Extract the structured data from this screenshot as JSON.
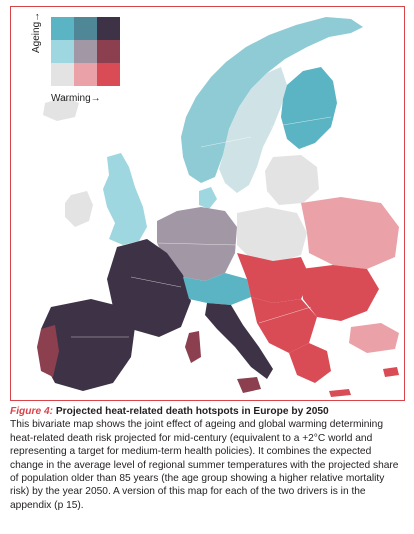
{
  "legend": {
    "y_axis_label": "Ageing→",
    "x_axis_label": "Warming→",
    "cells": [
      [
        "#5ab4c3",
        "#4f8796",
        "#3e3346"
      ],
      [
        "#9fd7e0",
        "#a197a5",
        "#8b3f4f"
      ],
      [
        "#e3e3e3",
        "#eaa1a7",
        "#d94c55"
      ]
    ]
  },
  "colors": {
    "frame_border": "#d9434a",
    "figure_label": "#d9434a",
    "sea": "#ffffff",
    "low_low": "#e3e3e3",
    "high_ageing": "#5ab4c3",
    "high_warming": "#d94c55",
    "high_both": "#3e3346"
  },
  "caption": {
    "figure_label": "Figure 4:",
    "title": " Projected heat-related death hotspots in Europe by 2050",
    "body": "This bivariate map shows the joint effect of ageing and global warming determining heat-related death risk projected for mid-century (equivalent to a +2°C world and representing a target for medium-term health policies). It combines the expected change in the average level of regional summer temperatures with the projected share of population older than 85 years (the age group showing a higher relative mortality risk) by the year 2050. A version of this map for each of the two drivers is in the appendix (p 15)."
  }
}
